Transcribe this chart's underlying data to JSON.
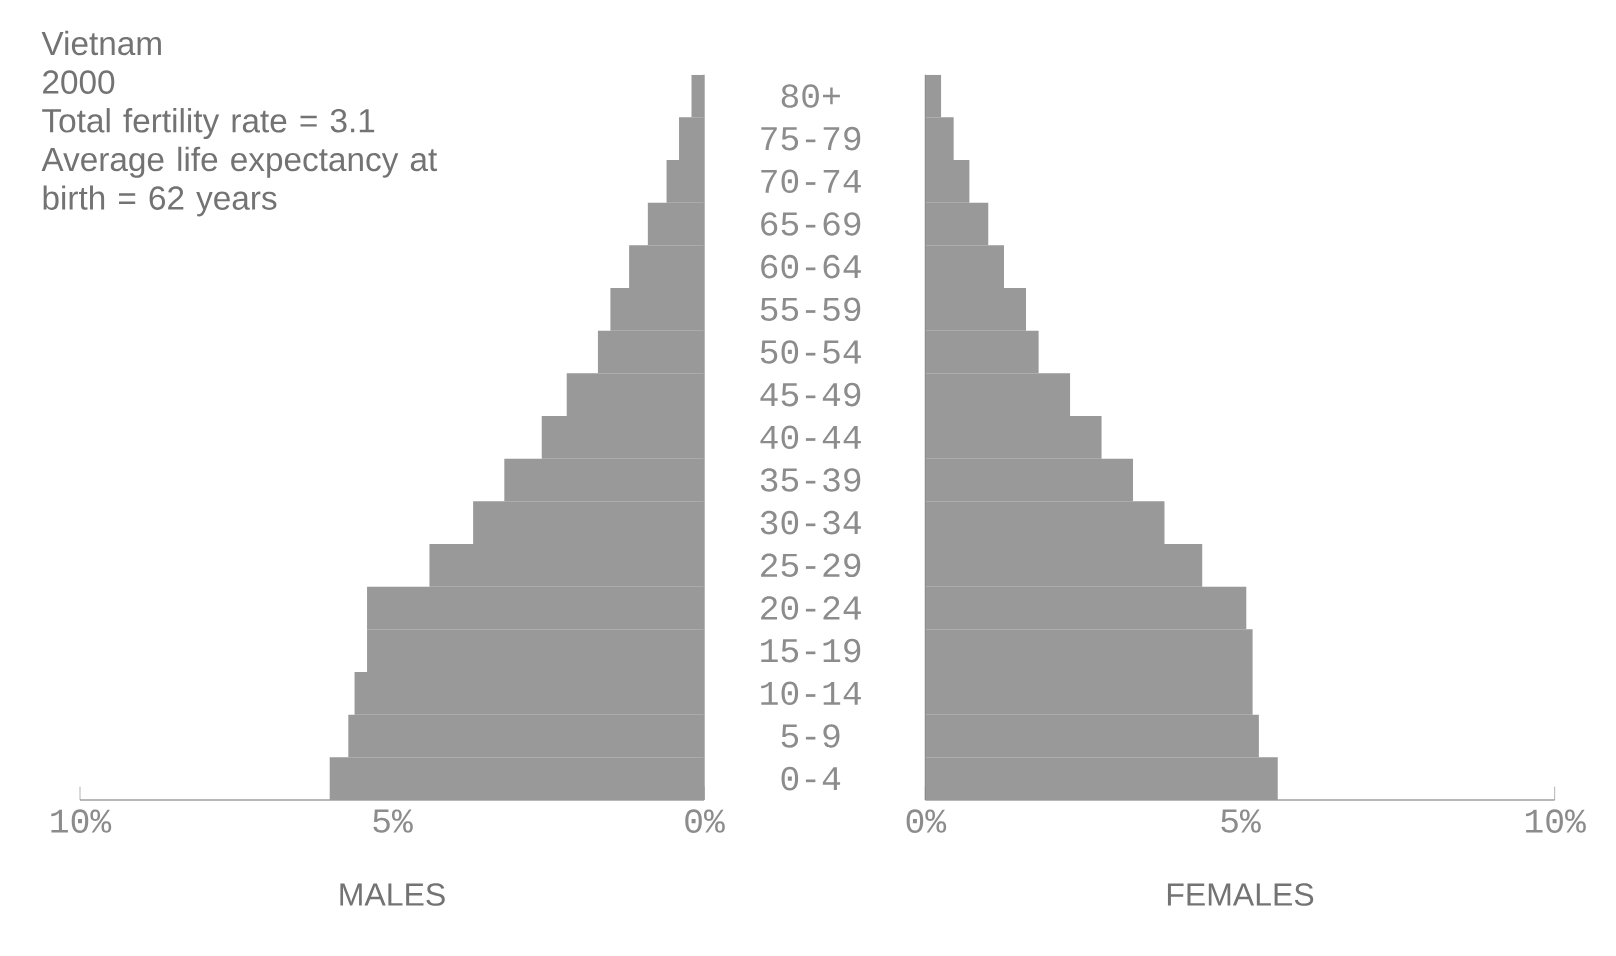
{
  "chart_data": [
    {
      "type": "bar",
      "orientation": "horizontal",
      "title": "Vietnam",
      "subtitle": "2000",
      "annotations": [
        "Total fertility rate = 3.1",
        "Average life expectancy at birth = 62 years"
      ],
      "xlabel": "MALES",
      "categories": [
        "80+",
        "75-79",
        "70-74",
        "65-69",
        "60-64",
        "55-59",
        "50-54",
        "45-49",
        "40-44",
        "35-39",
        "30-34",
        "25-29",
        "20-24",
        "15-19",
        "10-14",
        "5-9",
        "0-4"
      ],
      "values": [
        0.2,
        0.4,
        0.6,
        0.9,
        1.2,
        1.5,
        1.7,
        2.2,
        2.6,
        3.2,
        3.7,
        4.4,
        5.4,
        5.4,
        5.6,
        5.7,
        6.0
      ],
      "color": "#999999",
      "xlim": [
        10,
        0
      ],
      "xticks": [
        {
          "value": 10,
          "label": "10%"
        },
        {
          "value": 5,
          "label": "5%"
        },
        {
          "value": 0,
          "label": "0%"
        }
      ]
    },
    {
      "type": "bar",
      "orientation": "horizontal",
      "xlabel": "FEMALES",
      "categories": [
        null,
        null,
        null,
        null,
        null,
        null,
        null,
        null,
        null,
        null,
        null,
        null,
        null,
        null,
        null,
        null,
        null
      ],
      "values": [
        0.25,
        0.45,
        0.7,
        1.0,
        1.25,
        1.6,
        1.8,
        2.3,
        2.8,
        3.3,
        3.8,
        4.4,
        5.1,
        5.2,
        5.2,
        5.3,
        5.6
      ],
      "color": "#999999",
      "xlim": [
        0,
        10
      ],
      "xticks": [
        {
          "value": 0,
          "label": "0%"
        },
        {
          "value": 5,
          "label": "5%"
        },
        {
          "value": 10,
          "label": "10%"
        }
      ]
    }
  ]
}
